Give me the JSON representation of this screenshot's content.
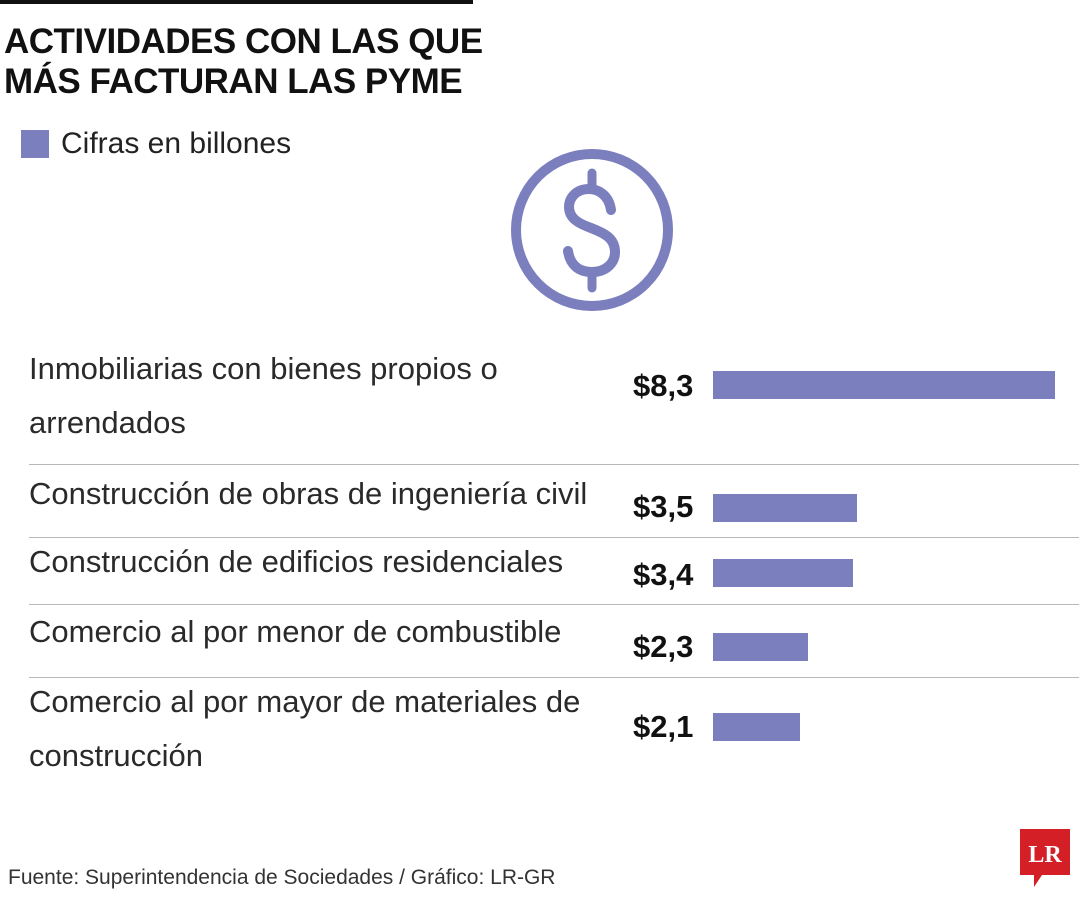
{
  "title": {
    "line1": "ACTIVIDADES CON LAS QUE",
    "line2": "MÁS FACTURAN LAS PYME"
  },
  "legend": {
    "label": "Cifras en billones"
  },
  "icon": "dollar-circle-icon",
  "colors": {
    "bar": "#7b7fbe",
    "divider": "#b8b8b8",
    "logo": "#d51f26"
  },
  "chart_data": {
    "type": "bar",
    "orientation": "horizontal",
    "title": "ACTIVIDADES CON LAS QUE MÁS FACTURAN LAS PYME",
    "unit": "billones",
    "categories": [
      "Inmobiliarias con bienes propios o arrendados",
      "Construcción de obras de ingeniería civil",
      "Construcción de edificios residenciales",
      "Comercio al por menor de combustible",
      "Comercio al por mayor de materiales de construcción"
    ],
    "category_lines": [
      [
        "Inmobiliarias con bienes propios o",
        "arrendados"
      ],
      [
        "Construcción de obras de ingeniería civil"
      ],
      [
        "Construcción de edificios residenciales"
      ],
      [
        "Comercio al por menor de combustible"
      ],
      [
        "Comercio al por mayor de materiales de",
        "construcción"
      ]
    ],
    "values": [
      8.3,
      3.5,
      3.4,
      2.3,
      2.1
    ],
    "value_labels": [
      "$8,3",
      "$3,5",
      "$3,4",
      "$2,3",
      "$2,1"
    ],
    "xlim": [
      0,
      8.3
    ],
    "legend": "top-left"
  },
  "footer": {
    "source": "Fuente: Superintendencia de Sociedades / Gráfico: LR-GR",
    "logo_text": "LR"
  }
}
